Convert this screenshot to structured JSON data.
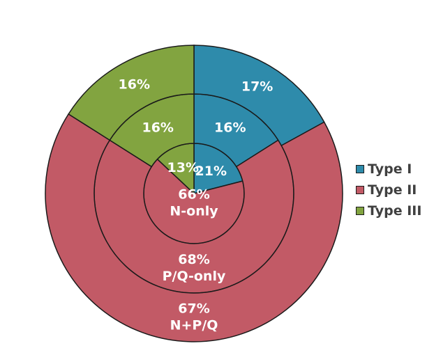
{
  "chart_data": {
    "type": "pie",
    "variant": "nested-donut",
    "title": "",
    "categories": [
      "Type I",
      "Type II",
      "Type III"
    ],
    "colors": [
      "#2e8bab",
      "#c25a66",
      "#82a440"
    ],
    "rings": [
      {
        "name": "N-only",
        "values": [
          21,
          66,
          13
        ],
        "labels": [
          "21%",
          "66%",
          "13%"
        ]
      },
      {
        "name": "P/Q-only",
        "values": [
          16,
          68,
          16
        ],
        "labels": [
          "16%",
          "68%",
          "16%"
        ]
      },
      {
        "name": "N+P/Q",
        "values": [
          17,
          67,
          16
        ],
        "labels": [
          "17%",
          "67%",
          "16%"
        ]
      }
    ],
    "legend": {
      "position": "right",
      "entries": [
        "Type I",
        "Type II",
        "Type III"
      ]
    }
  }
}
